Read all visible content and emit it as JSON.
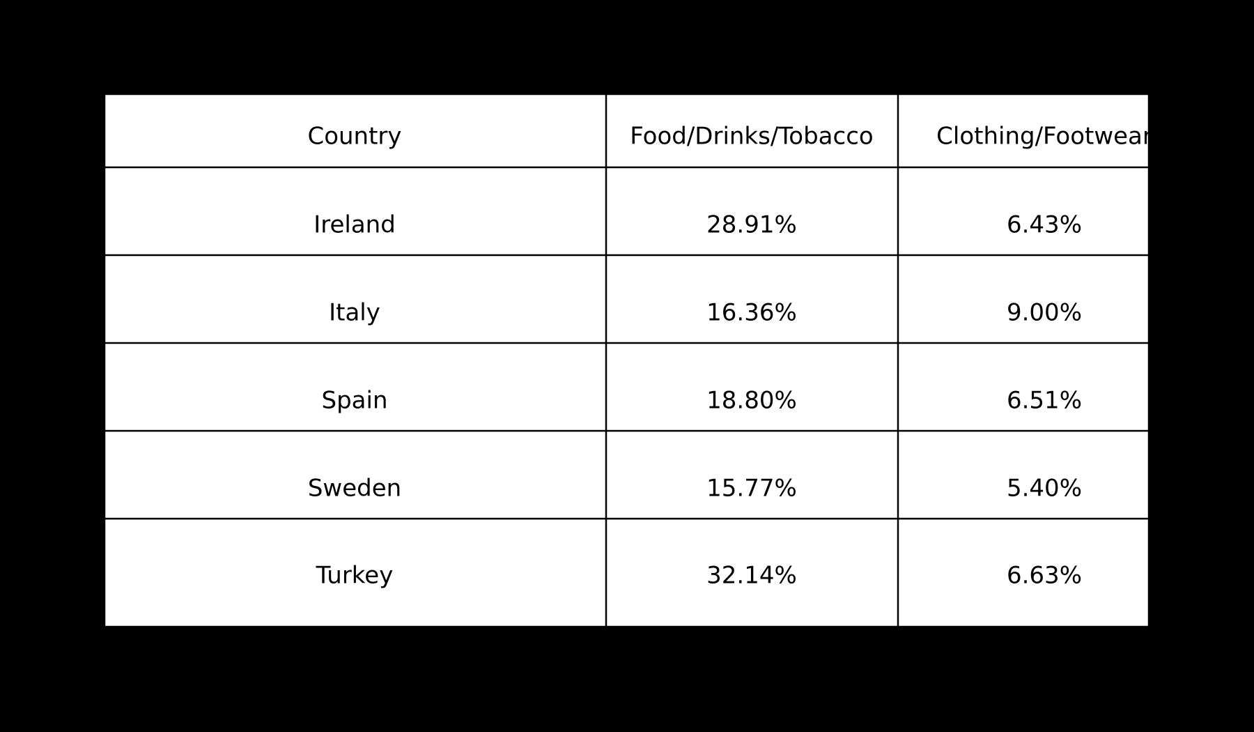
{
  "table": {
    "header": [
      "Country",
      "Food/Drinks/Tobacco",
      "Clothing/Footwear"
    ],
    "rows": [
      [
        "Ireland",
        "28.91%",
        "6.43%"
      ],
      [
        "Italy",
        "16.36%",
        "9.00%"
      ],
      [
        "Spain",
        "18.80%",
        "6.51%"
      ],
      [
        "Sweden",
        "15.77%",
        "5.40%"
      ],
      [
        "Turkey",
        "32.14%",
        "6.63%"
      ]
    ]
  }
}
